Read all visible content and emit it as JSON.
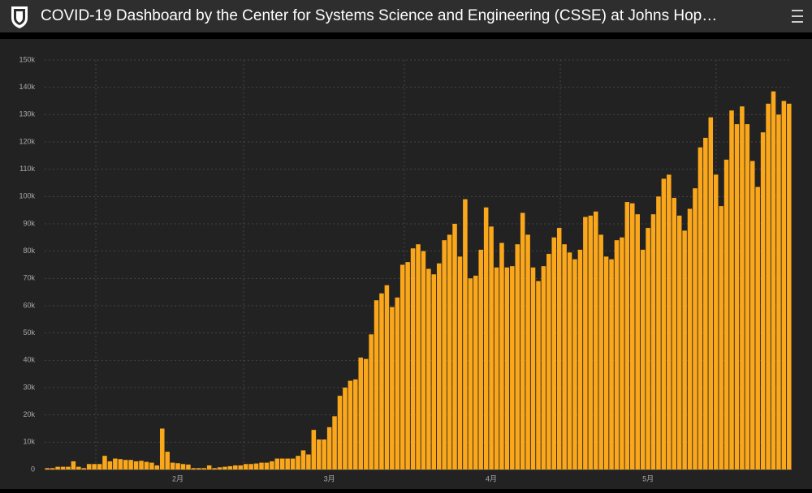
{
  "header": {
    "title": "COVID-19 Dashboard by the Center for Systems Science and Engineering (CSSE) at Johns Hop…"
  },
  "chart_data": {
    "type": "bar",
    "color": "#fba71b",
    "grid": true,
    "categories": [
      null,
      null,
      null,
      null,
      null,
      null,
      null,
      null,
      null,
      null,
      null,
      null,
      null,
      null,
      null,
      null,
      null,
      null,
      null,
      null,
      null,
      null,
      null,
      null,
      null,
      "2月",
      null,
      null,
      null,
      null,
      null,
      null,
      null,
      null,
      null,
      null,
      null,
      null,
      null,
      null,
      null,
      null,
      null,
      null,
      null,
      null,
      null,
      null,
      null,
      null,
      null,
      null,
      null,
      null,
      "3月",
      null,
      null,
      null,
      null,
      null,
      null,
      null,
      null,
      null,
      null,
      null,
      null,
      null,
      null,
      null,
      null,
      null,
      null,
      null,
      null,
      null,
      null,
      null,
      null,
      null,
      null,
      null,
      null,
      null,
      null,
      "4月",
      null,
      null,
      null,
      null,
      null,
      null,
      null,
      null,
      null,
      null,
      null,
      null,
      null,
      null,
      null,
      null,
      null,
      null,
      null,
      null,
      null,
      null,
      null,
      null,
      null,
      null,
      null,
      null,
      null,
      "5月",
      null,
      null,
      null,
      null,
      null,
      null,
      null,
      null,
      null,
      null,
      null,
      null,
      null,
      null,
      null,
      null,
      null,
      null,
      null,
      null,
      null,
      null,
      null,
      null,
      null,
      null,
      null
    ],
    "values": [
      500,
      500,
      1000,
      1000,
      1000,
      3000,
      1000,
      500,
      2000,
      2000,
      2000,
      5000,
      3000,
      4000,
      3800,
      3500,
      3500,
      3000,
      3200,
      2800,
      2500,
      1500,
      15000,
      6500,
      2500,
      2300,
      2000,
      1800,
      500,
      500,
      500,
      1500,
      500,
      800,
      1000,
      1200,
      1500,
      1500,
      2000,
      2000,
      2200,
      2500,
      2500,
      3000,
      4000,
      4000,
      4000,
      4000,
      5000,
      7000,
      5500,
      14500,
      11000,
      11000,
      15500,
      19500,
      27000,
      30000,
      32500,
      33000,
      41000,
      40500,
      49500,
      62000,
      64500,
      67500,
      59500,
      63000,
      75000,
      76000,
      81000,
      82500,
      80000,
      73500,
      71500,
      75500,
      84000,
      86000,
      90000,
      78000,
      99000,
      70000,
      71000,
      80500,
      96000,
      89000,
      74000,
      83000,
      74000,
      74500,
      82500,
      94000,
      86000,
      74000,
      69000,
      74500,
      79000,
      85000,
      88500,
      82500,
      79500,
      77000,
      80500,
      92500,
      93000,
      94500,
      86000,
      78000,
      77000,
      84000,
      85000,
      98000,
      97500,
      93500,
      80500,
      88500,
      93500,
      100000,
      106500,
      108000,
      99500,
      93000,
      87500,
      95500,
      103000,
      118000,
      121500,
      129000,
      108000,
      96500,
      113500,
      131500,
      126500,
      133000,
      126500,
      113000,
      103500,
      123500,
      134000,
      138500,
      130000,
      135000,
      134000
    ],
    "ylim": [
      0,
      150000
    ],
    "yticks": [
      0,
      {
        "value": 10000,
        "label": "10k"
      },
      {
        "value": 20000,
        "label": "20k"
      },
      {
        "value": 30000,
        "label": "30k"
      },
      {
        "value": 40000,
        "label": "40k"
      },
      {
        "value": 50000,
        "label": "50k"
      },
      {
        "value": 60000,
        "label": "60k"
      },
      {
        "value": 70000,
        "label": "70k"
      },
      {
        "value": 80000,
        "label": "80k"
      },
      {
        "value": 90000,
        "label": "90k"
      },
      {
        "value": 100000,
        "label": "100k"
      },
      {
        "value": 110000,
        "label": "110k"
      },
      {
        "value": 120000,
        "label": "120k"
      },
      {
        "value": 130000,
        "label": "130k"
      },
      {
        "value": 140000,
        "label": "140k"
      },
      {
        "value": 150000,
        "label": "150k"
      }
    ]
  }
}
